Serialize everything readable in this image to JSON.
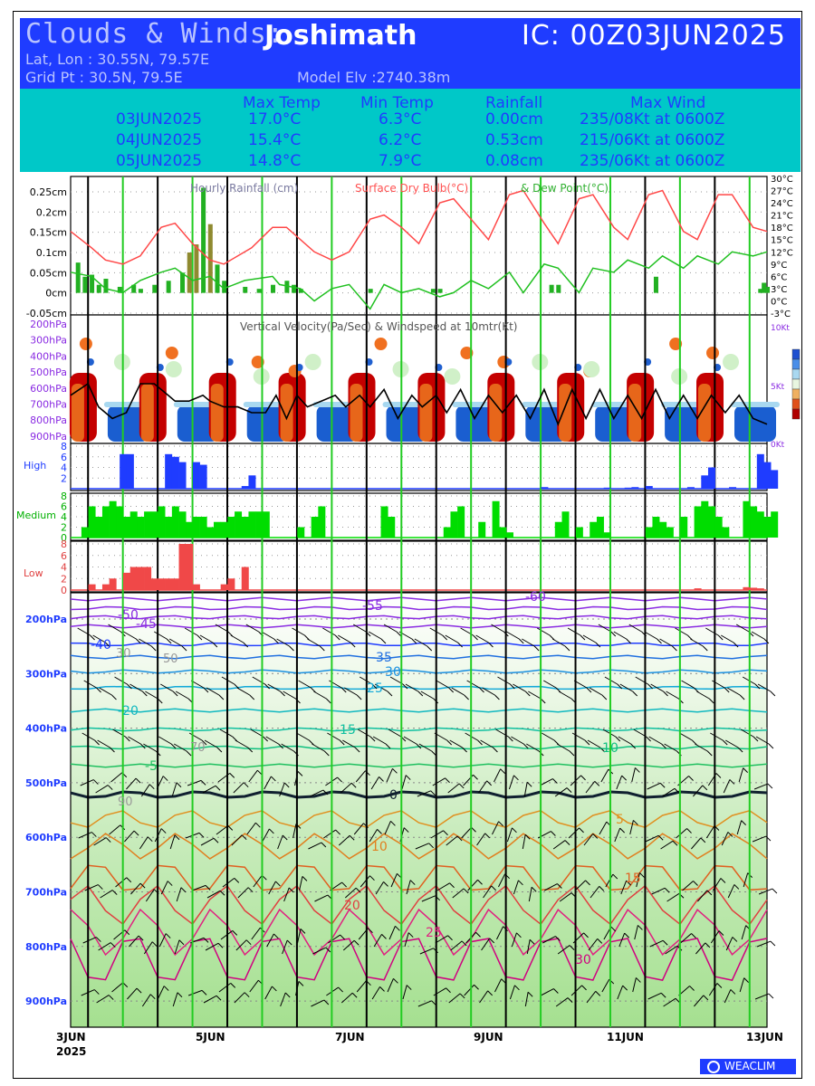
{
  "header": {
    "title": "Clouds & Winds:",
    "location": "Joshimath",
    "ic": "IC: 00Z03JUN2025",
    "latlon": "Lat, Lon : 30.55N, 79.57E",
    "gridpt": "Grid Pt  : 30.5N, 79.5E",
    "model_elv": "Model Elv :2740.38m"
  },
  "summary": {
    "headers": [
      "Max Temp",
      "Min Temp",
      "Rainfall",
      "Max Wind"
    ],
    "rows": [
      {
        "date": "03JUN2025",
        "max": "17.0°C",
        "min": "6.3°C",
        "rain": "0.00cm",
        "wind": "235/08Kt at 0600Z"
      },
      {
        "date": "04JUN2025",
        "max": "15.4°C",
        "min": "6.2°C",
        "rain": "0.53cm",
        "wind": "215/06Kt at 0600Z"
      },
      {
        "date": "05JUN2025",
        "max": "14.8°C",
        "min": "7.9°C",
        "rain": "0.08cm",
        "wind": "235/06Kt at 0600Z"
      }
    ]
  },
  "chart_data": [
    {
      "type": "bar",
      "panel": "rainfall-temperature",
      "legend": [
        "Hourly Rainfall (cm)",
        "Surface Dry Bulb(°C)",
        "& Dew Point(°C)"
      ],
      "y_left_ticks": [
        "0.25cm",
        "0.2cm",
        "0.15cm",
        "0.1cm",
        "0.05cm",
        "0cm",
        "-0.05cm"
      ],
      "y_right_ticks": [
        "30°C",
        "27°C",
        "24°C",
        "21°C",
        "18°C",
        "15°C",
        "12°C",
        "9°C",
        "6°C",
        "3°C",
        "0°C",
        "-3°C"
      ],
      "ylim_left": [
        -0.05,
        0.27
      ],
      "ylim_right": [
        -3,
        30
      ],
      "x_days": [
        0,
        10
      ],
      "rain": [
        [
          0.1,
          0.075
        ],
        [
          0.2,
          0.04
        ],
        [
          0.3,
          0.045
        ],
        [
          0.4,
          0.02
        ],
        [
          0.5,
          0.035
        ],
        [
          0.7,
          0.015
        ],
        [
          0.9,
          0.02
        ],
        [
          1.0,
          0.01
        ],
        [
          1.2,
          0.02
        ],
        [
          1.4,
          0.03
        ],
        [
          1.6,
          0.05
        ],
        [
          1.7,
          0.1
        ],
        [
          1.8,
          0.12
        ],
        [
          1.9,
          0.26
        ],
        [
          2.0,
          0.17
        ],
        [
          2.1,
          0.07
        ],
        [
          2.2,
          0.03
        ],
        [
          2.5,
          0.015
        ],
        [
          2.7,
          0.01
        ],
        [
          2.9,
          0.02
        ],
        [
          3.1,
          0.03
        ],
        [
          3.2,
          0.02
        ],
        [
          3.3,
          0.01
        ],
        [
          4.3,
          0.01
        ],
        [
          5.2,
          0.01
        ],
        [
          5.3,
          0.01
        ],
        [
          6.9,
          0.02
        ],
        [
          7.0,
          0.02
        ],
        [
          8.4,
          0.04
        ],
        [
          9.9,
          0.01
        ],
        [
          9.95,
          0.025
        ],
        [
          10.0,
          0.015
        ]
      ],
      "drybulb": [
        [
          0,
          17
        ],
        [
          0.3,
          13
        ],
        [
          0.5,
          10
        ],
        [
          0.75,
          9
        ],
        [
          1.0,
          11
        ],
        [
          1.3,
          18
        ],
        [
          1.5,
          19
        ],
        [
          1.75,
          14
        ],
        [
          2.0,
          10
        ],
        [
          2.2,
          9
        ],
        [
          2.6,
          13
        ],
        [
          2.9,
          18
        ],
        [
          3.1,
          18
        ],
        [
          3.5,
          12
        ],
        [
          3.75,
          10
        ],
        [
          4.0,
          12
        ],
        [
          4.3,
          20
        ],
        [
          4.5,
          21
        ],
        [
          4.75,
          18
        ],
        [
          5.0,
          14
        ],
        [
          5.3,
          24
        ],
        [
          5.5,
          25
        ],
        [
          5.75,
          20
        ],
        [
          6.0,
          15
        ],
        [
          6.3,
          26
        ],
        [
          6.5,
          27
        ],
        [
          6.8,
          19
        ],
        [
          7.0,
          14
        ],
        [
          7.3,
          25
        ],
        [
          7.5,
          26
        ],
        [
          7.8,
          18
        ],
        [
          8.0,
          15
        ],
        [
          8.3,
          26
        ],
        [
          8.5,
          27
        ],
        [
          8.8,
          17
        ],
        [
          9.0,
          15
        ],
        [
          9.3,
          26
        ],
        [
          9.5,
          26
        ],
        [
          9.8,
          18
        ],
        [
          10.0,
          17
        ]
      ],
      "dewpoint": [
        [
          0,
          7
        ],
        [
          0.3,
          6
        ],
        [
          0.5,
          3
        ],
        [
          0.75,
          2
        ],
        [
          1.0,
          5
        ],
        [
          1.3,
          7
        ],
        [
          1.5,
          8
        ],
        [
          1.75,
          5
        ],
        [
          2.0,
          6
        ],
        [
          2.2,
          3
        ],
        [
          2.5,
          5
        ],
        [
          2.9,
          6
        ],
        [
          3.0,
          4
        ],
        [
          3.3,
          3
        ],
        [
          3.5,
          0
        ],
        [
          3.75,
          3
        ],
        [
          4.0,
          4
        ],
        [
          4.3,
          -2
        ],
        [
          4.5,
          4
        ],
        [
          4.75,
          2
        ],
        [
          5.0,
          3
        ],
        [
          5.3,
          1
        ],
        [
          5.5,
          2
        ],
        [
          5.75,
          5
        ],
        [
          6.0,
          3
        ],
        [
          6.3,
          7
        ],
        [
          6.5,
          2
        ],
        [
          6.8,
          9
        ],
        [
          7.0,
          8
        ],
        [
          7.3,
          2
        ],
        [
          7.5,
          8
        ],
        [
          7.8,
          7
        ],
        [
          8.0,
          10
        ],
        [
          8.3,
          8
        ],
        [
          8.5,
          11
        ],
        [
          8.8,
          8
        ],
        [
          9.0,
          11
        ],
        [
          9.3,
          9
        ],
        [
          9.5,
          12
        ],
        [
          9.8,
          11
        ],
        [
          10.0,
          12
        ]
      ]
    },
    {
      "type": "heatmap",
      "panel": "vertical-velocity",
      "title": "Vertical Velocity(Pa/Sec) & Windspeed at 10mtr(Kt)",
      "y_left_ticks": [
        "200hPa",
        "300hPa",
        "400hPa",
        "500hPa",
        "600hPa",
        "700hPa",
        "800hPa",
        "900hPa"
      ],
      "y_right_ticks": [
        "10Kt",
        "5Kt",
        "0Kt"
      ],
      "ylim_right": [
        0,
        10
      ],
      "windspeed": [
        [
          0,
          4
        ],
        [
          0.25,
          5
        ],
        [
          0.4,
          3
        ],
        [
          0.6,
          2
        ],
        [
          0.8,
          2.5
        ],
        [
          1.0,
          5
        ],
        [
          1.2,
          5
        ],
        [
          1.4,
          4
        ],
        [
          1.5,
          3.5
        ],
        [
          1.7,
          3.5
        ],
        [
          1.9,
          4
        ],
        [
          2.0,
          3.5
        ],
        [
          2.2,
          3
        ],
        [
          2.4,
          3
        ],
        [
          2.6,
          2.5
        ],
        [
          2.8,
          2.5
        ],
        [
          2.95,
          4
        ],
        [
          3.1,
          2
        ],
        [
          3.25,
          4
        ],
        [
          3.4,
          3
        ],
        [
          3.6,
          3.5
        ],
        [
          3.8,
          4
        ],
        [
          3.95,
          3
        ],
        [
          4.15,
          4
        ],
        [
          4.3,
          3
        ],
        [
          4.5,
          4.5
        ],
        [
          4.7,
          2
        ],
        [
          4.9,
          4
        ],
        [
          5.05,
          3
        ],
        [
          5.25,
          4
        ],
        [
          5.4,
          2.5
        ],
        [
          5.6,
          4.5
        ],
        [
          5.8,
          2
        ],
        [
          6.0,
          4
        ],
        [
          6.2,
          2.5
        ],
        [
          6.4,
          4
        ],
        [
          6.6,
          2
        ],
        [
          6.8,
          4.5
        ],
        [
          7.0,
          1.5
        ],
        [
          7.2,
          4.5
        ],
        [
          7.4,
          2
        ],
        [
          7.6,
          4.5
        ],
        [
          7.8,
          2
        ],
        [
          8.0,
          4
        ],
        [
          8.2,
          2
        ],
        [
          8.4,
          4.5
        ],
        [
          8.6,
          2
        ],
        [
          8.8,
          4
        ],
        [
          9.0,
          2
        ],
        [
          9.2,
          4
        ],
        [
          9.4,
          2.5
        ],
        [
          9.6,
          4
        ],
        [
          9.8,
          2
        ],
        [
          10.0,
          1.5
        ]
      ]
    },
    {
      "type": "bar",
      "panel": "cloud-high",
      "label": "High",
      "y_ticks": [
        "8",
        "6",
        "4",
        "2"
      ],
      "ylim": [
        0,
        8
      ],
      "values": [
        [
          0.75,
          6.5
        ],
        [
          0.85,
          6.5
        ],
        [
          1.4,
          6.5
        ],
        [
          1.5,
          6
        ],
        [
          1.6,
          5
        ],
        [
          1.8,
          5
        ],
        [
          1.9,
          4.5
        ],
        [
          2.5,
          0.5
        ],
        [
          2.6,
          2.5
        ],
        [
          6.8,
          0.3
        ],
        [
          7.7,
          0.2
        ],
        [
          8.0,
          0.2
        ],
        [
          8.3,
          0.5
        ],
        [
          8.1,
          0.3
        ],
        [
          8.9,
          0.3
        ],
        [
          9.1,
          2.5
        ],
        [
          9.2,
          4
        ],
        [
          9.5,
          0.3
        ],
        [
          9.9,
          6.5
        ],
        [
          10.0,
          5
        ],
        [
          10.1,
          3.5
        ]
      ]
    },
    {
      "type": "bar",
      "panel": "cloud-medium",
      "label": "Medium",
      "y_ticks": [
        "8",
        "6",
        "4",
        "2",
        "0"
      ],
      "ylim": [
        0,
        8
      ],
      "values": [
        [
          0.2,
          2
        ],
        [
          0.3,
          6
        ],
        [
          0.4,
          4
        ],
        [
          0.5,
          6
        ],
        [
          0.6,
          7
        ],
        [
          0.7,
          6
        ],
        [
          0.8,
          4
        ],
        [
          0.9,
          5
        ],
        [
          1.0,
          4
        ],
        [
          1.1,
          5
        ],
        [
          1.2,
          5
        ],
        [
          1.3,
          6
        ],
        [
          1.4,
          4
        ],
        [
          1.5,
          6
        ],
        [
          1.6,
          5
        ],
        [
          1.7,
          3
        ],
        [
          1.8,
          4
        ],
        [
          1.9,
          4
        ],
        [
          2.0,
          2
        ],
        [
          2.1,
          3
        ],
        [
          2.2,
          3
        ],
        [
          2.3,
          4
        ],
        [
          2.4,
          5
        ],
        [
          2.5,
          4
        ],
        [
          2.6,
          5
        ],
        [
          2.7,
          5
        ],
        [
          2.8,
          5
        ],
        [
          3.3,
          2
        ],
        [
          3.5,
          4
        ],
        [
          3.6,
          6
        ],
        [
          4.5,
          6
        ],
        [
          4.6,
          4
        ],
        [
          5.4,
          2
        ],
        [
          5.5,
          5
        ],
        [
          5.6,
          6
        ],
        [
          5.9,
          3
        ],
        [
          6.1,
          7
        ],
        [
          6.2,
          2
        ],
        [
          6.3,
          1
        ],
        [
          7.0,
          3
        ],
        [
          7.1,
          5
        ],
        [
          7.3,
          2
        ],
        [
          7.5,
          3
        ],
        [
          7.6,
          4
        ],
        [
          7.7,
          1
        ],
        [
          8.3,
          2
        ],
        [
          8.4,
          4
        ],
        [
          8.5,
          3
        ],
        [
          8.6,
          2
        ],
        [
          8.8,
          4
        ],
        [
          9.0,
          6
        ],
        [
          9.1,
          7
        ],
        [
          9.2,
          6
        ],
        [
          9.3,
          4
        ],
        [
          9.4,
          2
        ],
        [
          9.7,
          7
        ],
        [
          9.8,
          6
        ],
        [
          9.9,
          5
        ],
        [
          10.0,
          4
        ],
        [
          10.1,
          5
        ]
      ]
    },
    {
      "type": "bar",
      "panel": "cloud-low",
      "label": "Low",
      "y_ticks": [
        "8",
        "6",
        "4",
        "2",
        "0"
      ],
      "ylim": [
        0,
        8
      ],
      "values": [
        [
          0.3,
          1
        ],
        [
          0.5,
          1
        ],
        [
          0.6,
          2
        ],
        [
          0.8,
          3
        ],
        [
          0.9,
          4
        ],
        [
          1.0,
          4
        ],
        [
          1.1,
          4
        ],
        [
          1.2,
          2
        ],
        [
          1.3,
          2
        ],
        [
          1.4,
          2
        ],
        [
          1.5,
          2
        ],
        [
          1.6,
          8
        ],
        [
          1.7,
          8
        ],
        [
          1.8,
          1
        ],
        [
          2.2,
          1
        ],
        [
          2.3,
          2
        ],
        [
          2.5,
          4
        ],
        [
          9.0,
          0.3
        ],
        [
          9.7,
          0.5
        ],
        [
          9.8,
          0.4
        ],
        [
          9.9,
          0.3
        ]
      ]
    },
    {
      "type": "heatmap",
      "panel": "temperature-humidity-profile",
      "y_ticks": [
        "200hPa",
        "300hPa",
        "400hPa",
        "500hPa",
        "600hPa",
        "700hPa",
        "800hPa",
        "900hPa"
      ],
      "x_ticks": [
        "3JUN",
        "5JUN",
        "7JUN",
        "9JUN",
        "11JUN",
        "13JUN"
      ],
      "x_year": "2025",
      "isotherm_labels": [
        "-60",
        "-55",
        "-50",
        "-45",
        "-40",
        "-35",
        "-30",
        "-25",
        "-20",
        "-15",
        "-10",
        "-5",
        "0",
        "5",
        "10",
        "15",
        "20",
        "25",
        "30"
      ],
      "rh_labels": [
        "30",
        "50",
        "70",
        "90"
      ]
    }
  ],
  "footer": {
    "brand": "WEACLIM"
  }
}
